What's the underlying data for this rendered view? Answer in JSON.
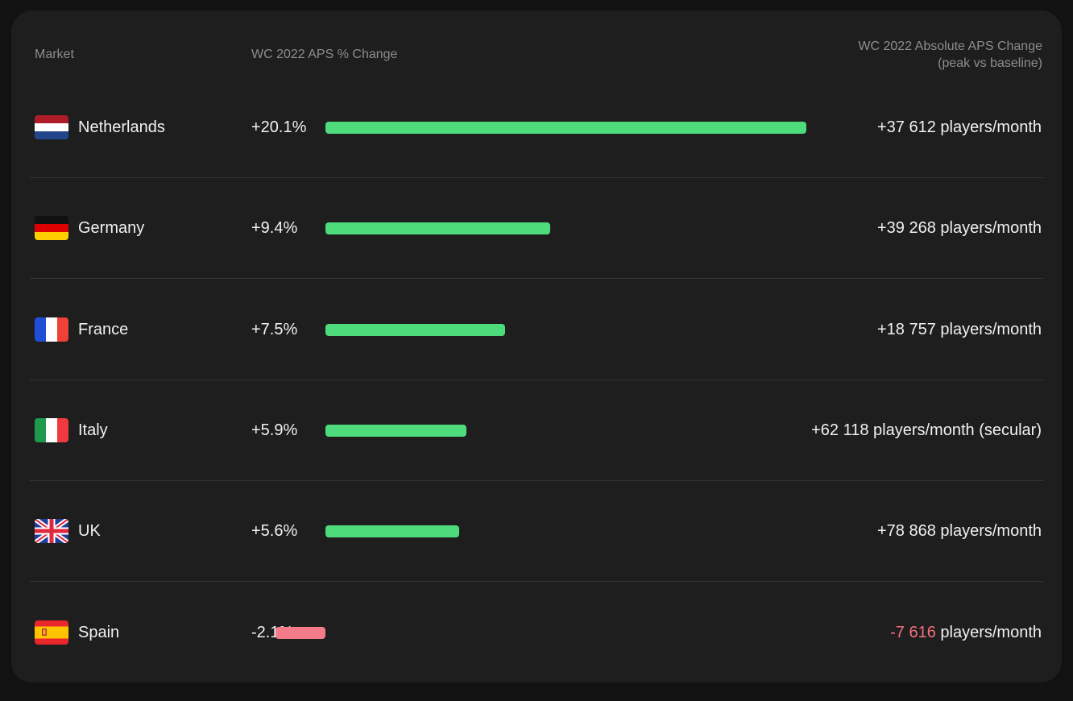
{
  "headers": {
    "market": "Market",
    "pct_change": "WC 2022 APS % Change",
    "abs_change_line1": "WC 2022 Absolute APS Change",
    "abs_change_line2": "(peak vs baseline)"
  },
  "colors": {
    "positive_bar": "#4ddb7c",
    "negative_bar": "#f47b8a",
    "negative_text": "#f2707f"
  },
  "chart_data": {
    "type": "bar",
    "orientation": "horizontal",
    "categories": [
      "Netherlands",
      "Germany",
      "France",
      "Italy",
      "UK",
      "Spain"
    ],
    "values": [
      20.1,
      9.4,
      7.5,
      5.9,
      5.6,
      -2.1
    ],
    "value_labels": [
      "+20.1%",
      "+9.4%",
      "+7.5%",
      "+5.9%",
      "+5.6%",
      "-2.1%"
    ],
    "absolute_change": [
      {
        "value": "+37 612",
        "unit": " players/month"
      },
      {
        "value": "+39 268",
        "unit": " players/month"
      },
      {
        "value": "+18 757",
        "unit": " players/month"
      },
      {
        "value": "+62 118",
        "unit": " players/month (secular)"
      },
      {
        "value": "+78 868",
        "unit": " players/month"
      },
      {
        "value": "-7 616",
        "unit": " players/month"
      }
    ],
    "flags": [
      "netherlands-flag-icon",
      "germany-flag-icon",
      "france-flag-icon",
      "italy-flag-icon",
      "uk-flag-icon",
      "spain-flag-icon"
    ],
    "grid": false,
    "legend": "none"
  }
}
